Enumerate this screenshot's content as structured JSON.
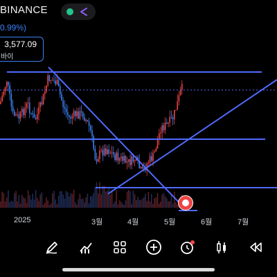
{
  "header": {
    "exchange": "BINANCE",
    "change_pct": "0.99%)",
    "price": "3,577.09",
    "price_label": "바이"
  },
  "xaxis": {
    "labels": [
      "2025",
      "3월",
      "4월",
      "5월",
      "6월",
      "7월"
    ]
  },
  "toolbar": {
    "icons": [
      "draw-icon",
      "indicators-icon",
      "layouts-icon",
      "add-icon",
      "alert-clock-icon",
      "candle-type-icon",
      "replay-icon"
    ]
  },
  "colors": {
    "up": "#ef4444",
    "down": "#3b82f6",
    "trendline": "#4f6bff",
    "status": "#22c58b",
    "accent": "#8b5cf6"
  }
}
